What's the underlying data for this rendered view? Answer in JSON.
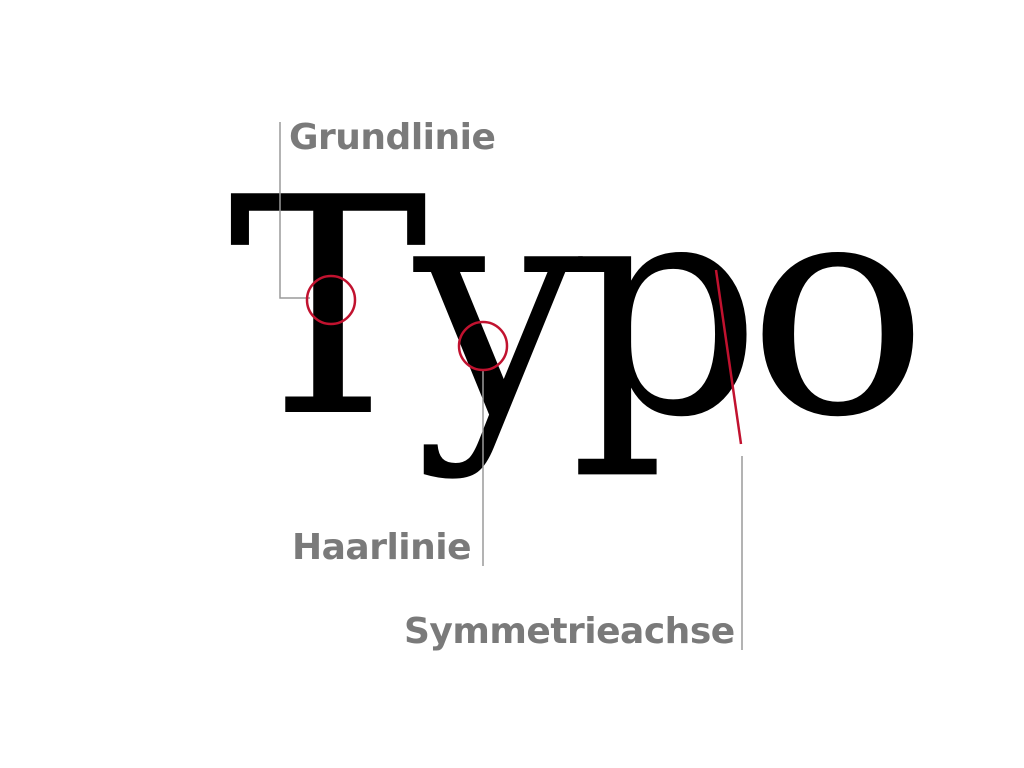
{
  "word": "Typo",
  "labels": {
    "baseline": "Grundlinie",
    "hairline": "Haarlinie",
    "symmetry_axis": "Symmetrieachse"
  },
  "colors": {
    "glyph": "#000000",
    "label": "#7a7a7a",
    "leader_line": "#9a9a9a",
    "highlight": "#c1122f"
  }
}
